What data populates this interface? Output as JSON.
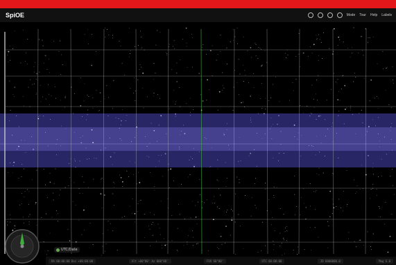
{
  "window": {
    "title": ""
  },
  "toolbar": {
    "logo": "SpiOE",
    "icons": [
      "zoom-icon",
      "layers-icon",
      "settings-icon",
      "info-icon"
    ],
    "buttons": [
      "Mode",
      "Tour",
      "Help",
      "Labels"
    ]
  },
  "sky": {
    "background": "#000000",
    "grid_color": "#bfbfbf",
    "meridian_color": "#3fae3f",
    "band_color": "#5a55c8"
  },
  "compass": {
    "label": "",
    "accent": "#3fae3f"
  },
  "timezone": {
    "label": "UTC/Date"
  },
  "status": {
    "fields": [
      "RA 00:00:00 Dec +00:00:00",
      "Alt +00°00' Az 000°00'",
      "FOV 60°00'",
      "UTC 00:00:00",
      "JD 0000000.0",
      "Mag 6.0"
    ]
  }
}
